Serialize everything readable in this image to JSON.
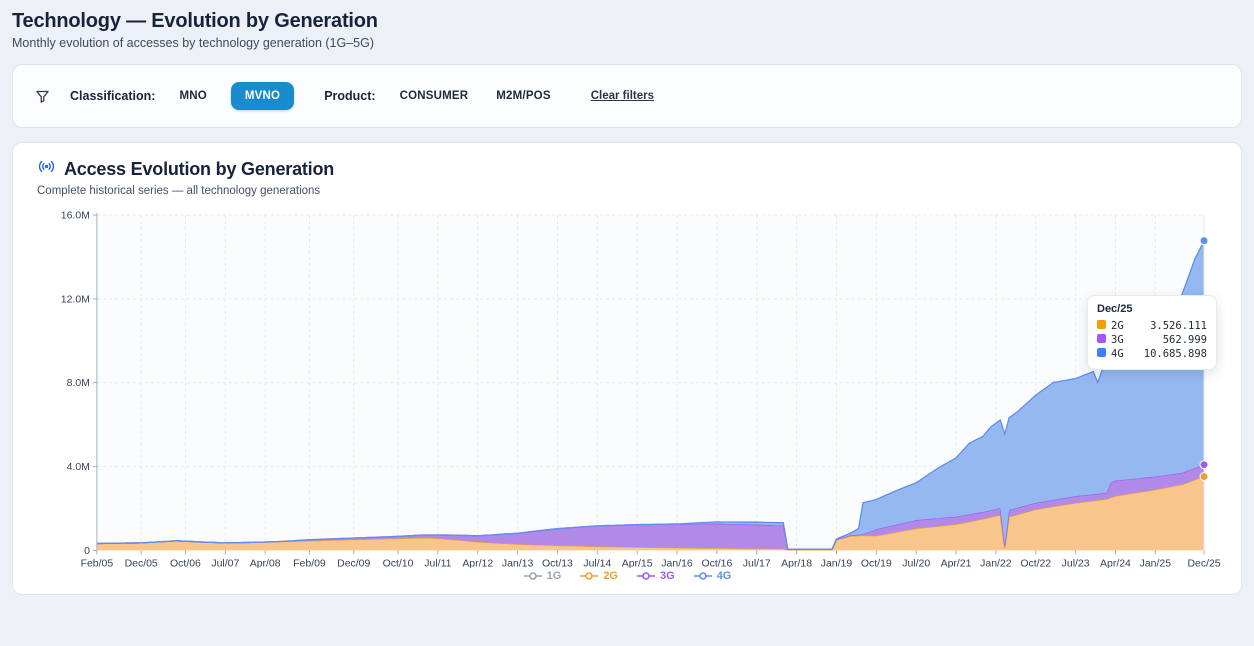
{
  "page": {
    "title": "Technology — Evolution by Generation",
    "subtitle": "Monthly evolution of accesses by technology generation (1G–5G)"
  },
  "filters": {
    "classification_label": "Classification:",
    "classification_options": [
      {
        "label": "MNO",
        "selected": false
      },
      {
        "label": "MVNO",
        "selected": true
      }
    ],
    "product_label": "Product:",
    "product_options": [
      {
        "label": "CONSUMER",
        "selected": false
      },
      {
        "label": "M2M/POS",
        "selected": false
      }
    ],
    "clear_label": "Clear filters",
    "selected_pill_color": "#1a8bcd"
  },
  "tooltip": {
    "title": "Dec/25",
    "rows": [
      {
        "label": "2G",
        "value": "3.526.111",
        "color": "#f59e0b"
      },
      {
        "label": "3G",
        "value": "562.999",
        "color": "#a855f7"
      },
      {
        "label": "4G",
        "value": "10.685.898",
        "color": "#3b82f6"
      }
    ]
  },
  "chart_data": {
    "type": "area",
    "stacked": true,
    "title": "Access Evolution by Generation",
    "subtitle": "Complete historical series — all technology generations",
    "x_unit": "months since Feb/2005",
    "x_max": 250,
    "ylim": [
      0,
      16
    ],
    "y_unit": "millions of accesses",
    "grid": true,
    "legend_position": "bottom",
    "y_ticks": [
      {
        "v": 0,
        "label": "0"
      },
      {
        "v": 4,
        "label": "4.0M"
      },
      {
        "v": 8,
        "label": "8.0M"
      },
      {
        "v": 12,
        "label": "12.0M"
      },
      {
        "v": 16,
        "label": "16.0M"
      }
    ],
    "x_ticks": [
      {
        "m": 0,
        "label": "Feb/05"
      },
      {
        "m": 10,
        "label": "Dec/05"
      },
      {
        "m": 20,
        "label": "Oct/06"
      },
      {
        "m": 29,
        "label": "Jul/07"
      },
      {
        "m": 38,
        "label": "Apr/08"
      },
      {
        "m": 48,
        "label": "Feb/09"
      },
      {
        "m": 58,
        "label": "Dec/09"
      },
      {
        "m": 68,
        "label": "Oct/10"
      },
      {
        "m": 77,
        "label": "Jul/11"
      },
      {
        "m": 86,
        "label": "Apr/12"
      },
      {
        "m": 95,
        "label": "Jan/13"
      },
      {
        "m": 104,
        "label": "Oct/13"
      },
      {
        "m": 113,
        "label": "Jul/14"
      },
      {
        "m": 122,
        "label": "Apr/15"
      },
      {
        "m": 131,
        "label": "Jan/16"
      },
      {
        "m": 140,
        "label": "Oct/16"
      },
      {
        "m": 149,
        "label": "Jul/17"
      },
      {
        "m": 158,
        "label": "Apr/18"
      },
      {
        "m": 167,
        "label": "Jan/19"
      },
      {
        "m": 176,
        "label": "Oct/19"
      },
      {
        "m": 185,
        "label": "Jul/20"
      },
      {
        "m": 194,
        "label": "Apr/21"
      },
      {
        "m": 203,
        "label": "Jan/22"
      },
      {
        "m": 212,
        "label": "Oct/22"
      },
      {
        "m": 221,
        "label": "Jul/23"
      },
      {
        "m": 230,
        "label": "Apr/24"
      },
      {
        "m": 239,
        "label": "Jan/25"
      },
      {
        "m": 250,
        "label": "Dec/25"
      }
    ],
    "series": [
      {
        "name": "1G",
        "color": "#9ca3af",
        "fill": "#d3d7dd",
        "points": [
          [
            0,
            0
          ],
          [
            250,
            0
          ]
        ]
      },
      {
        "name": "2G",
        "color": "#ef9e33",
        "fill": "#f8c68a",
        "points": [
          [
            0,
            0.33
          ],
          [
            10,
            0.36
          ],
          [
            18,
            0.46
          ],
          [
            20,
            0.44
          ],
          [
            24,
            0.4
          ],
          [
            29,
            0.36
          ],
          [
            38,
            0.4
          ],
          [
            48,
            0.46
          ],
          [
            58,
            0.52
          ],
          [
            68,
            0.57
          ],
          [
            74,
            0.6
          ],
          [
            77,
            0.58
          ],
          [
            86,
            0.41
          ],
          [
            95,
            0.3
          ],
          [
            104,
            0.24
          ],
          [
            113,
            0.19
          ],
          [
            122,
            0.16
          ],
          [
            131,
            0.13
          ],
          [
            140,
            0.11
          ],
          [
            149,
            0.09
          ],
          [
            155,
            0.08
          ],
          [
            156,
            0.03
          ],
          [
            166,
            0.03
          ],
          [
            167,
            0.5
          ],
          [
            170,
            0.68
          ],
          [
            173,
            0.72
          ],
          [
            176,
            0.7
          ],
          [
            185,
            1.05
          ],
          [
            194,
            1.25
          ],
          [
            200,
            1.5
          ],
          [
            204,
            1.7
          ],
          [
            205,
            0.1
          ],
          [
            206,
            1.6
          ],
          [
            212,
            1.96
          ],
          [
            221,
            2.27
          ],
          [
            228,
            2.45
          ],
          [
            230,
            2.6
          ],
          [
            239,
            2.9
          ],
          [
            245,
            3.15
          ],
          [
            250,
            3.526
          ]
        ]
      },
      {
        "name": "3G",
        "color": "#9b5cf0",
        "fill": "#b18ae9",
        "points": [
          [
            0,
            0
          ],
          [
            38,
            0
          ],
          [
            42,
            0.01
          ],
          [
            48,
            0.05
          ],
          [
            58,
            0.07
          ],
          [
            68,
            0.1
          ],
          [
            77,
            0.16
          ],
          [
            86,
            0.29
          ],
          [
            95,
            0.52
          ],
          [
            104,
            0.8
          ],
          [
            113,
            0.98
          ],
          [
            122,
            1.07
          ],
          [
            131,
            1.13
          ],
          [
            140,
            1.17
          ],
          [
            149,
            1.14
          ],
          [
            155,
            1.1
          ],
          [
            156,
            0.02
          ],
          [
            166,
            0.02
          ],
          [
            170,
            0.03
          ],
          [
            173,
            0.05
          ],
          [
            176,
            0.31
          ],
          [
            185,
            0.4
          ],
          [
            194,
            0.36
          ],
          [
            200,
            0.33
          ],
          [
            204,
            0.32
          ],
          [
            205,
            0.15
          ],
          [
            206,
            0.33
          ],
          [
            212,
            0.31
          ],
          [
            221,
            0.32
          ],
          [
            228,
            0.3
          ],
          [
            229,
            0.72
          ],
          [
            230,
            0.73
          ],
          [
            239,
            0.62
          ],
          [
            245,
            0.55
          ],
          [
            250,
            0.563
          ]
        ]
      },
      {
        "name": "4G",
        "color": "#5f8ef0",
        "fill": "#96b8f1",
        "points": [
          [
            0,
            0
          ],
          [
            131,
            0
          ],
          [
            134,
            0.03
          ],
          [
            140,
            0.08
          ],
          [
            149,
            0.12
          ],
          [
            155,
            0.14
          ],
          [
            156,
            0.01
          ],
          [
            166,
            0.01
          ],
          [
            167,
            0.02
          ],
          [
            170,
            0.1
          ],
          [
            172,
            0.3
          ],
          [
            173,
            1.5
          ],
          [
            176,
            1.42
          ],
          [
            180,
            1.6
          ],
          [
            185,
            1.78
          ],
          [
            190,
            2.4
          ],
          [
            194,
            2.8
          ],
          [
            197,
            3.4
          ],
          [
            200,
            3.6
          ],
          [
            202,
            4.0
          ],
          [
            204,
            4.2
          ],
          [
            205,
            5.3
          ],
          [
            206,
            4.4
          ],
          [
            208,
            4.6
          ],
          [
            212,
            5.14
          ],
          [
            216,
            5.6
          ],
          [
            221,
            5.61
          ],
          [
            225,
            5.85
          ],
          [
            226,
            5.3
          ],
          [
            227,
            5.9
          ],
          [
            230,
            5.9
          ],
          [
            234,
            6.4
          ],
          [
            239,
            6.9
          ],
          [
            242,
            7.8
          ],
          [
            245,
            8.5
          ],
          [
            248,
            10.0
          ],
          [
            250,
            10.686
          ]
        ]
      }
    ]
  }
}
